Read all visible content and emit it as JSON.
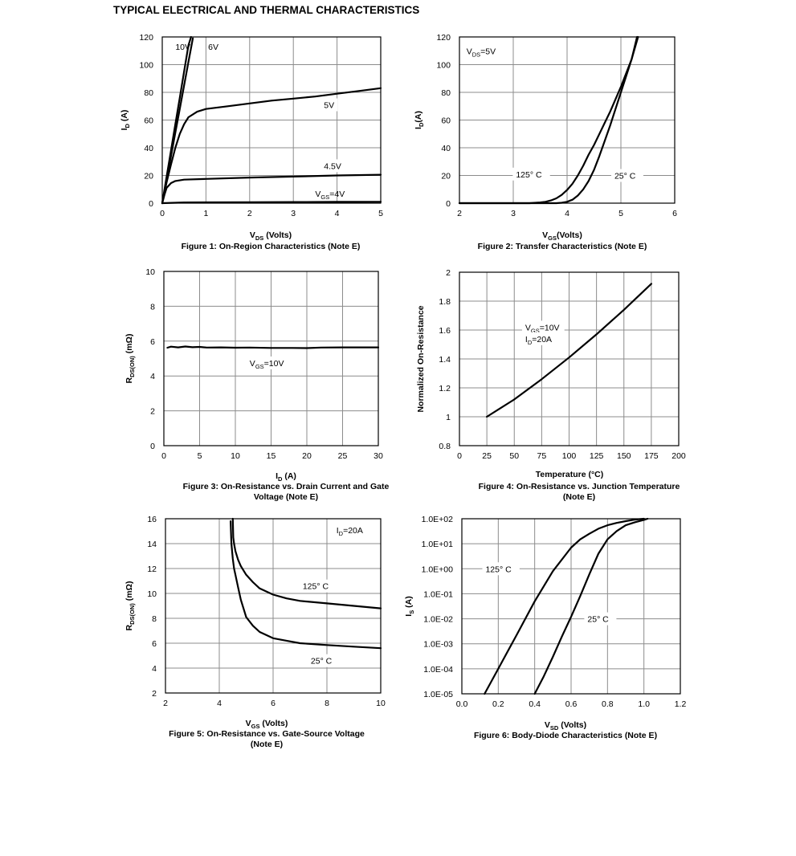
{
  "page_title": "TYPICAL ELECTRICAL AND THERMAL CHARACTERISTICS",
  "chart_data": [
    {
      "type": "line",
      "caption": "Figure 1: On-Region Characteristics (Note E)",
      "xlabel": {
        "main": "V",
        "sub": "DS",
        "rest": " (Volts)"
      },
      "ylabel": {
        "main": "I",
        "sub": "D",
        "rest": " (A)"
      },
      "xlim": [
        0,
        5
      ],
      "ylim": [
        0,
        120
      ],
      "xticks": [
        0,
        1,
        2,
        3,
        4,
        5
      ],
      "yticks": [
        0,
        20,
        40,
        60,
        80,
        100,
        120
      ],
      "xtick_labels": [
        "0",
        "1",
        "2",
        "3",
        "4",
        "5"
      ],
      "ytick_labels": [
        "0",
        "20",
        "40",
        "60",
        "80",
        "100",
        "120"
      ],
      "series": [
        {
          "name": "10V",
          "x": [
            0,
            0.1,
            0.2,
            0.3,
            0.4,
            0.5,
            0.6,
            0.66
          ],
          "y": [
            0,
            19,
            38,
            57,
            76,
            95,
            114,
            120
          ]
        },
        {
          "name": "6V",
          "x": [
            0,
            0.1,
            0.2,
            0.3,
            0.4,
            0.5,
            0.6,
            0.7
          ],
          "y": [
            0,
            17,
            34,
            51,
            68,
            85,
            102,
            119
          ]
        },
        {
          "name": "5V",
          "x": [
            0,
            0.1,
            0.2,
            0.3,
            0.4,
            0.5,
            0.6,
            0.8,
            1,
            1.5,
            2,
            2.5,
            3,
            3.5,
            4,
            4.5,
            5
          ],
          "y": [
            0,
            15,
            28,
            40,
            50,
            57,
            62,
            66,
            68,
            70,
            72,
            74,
            75.5,
            77,
            79,
            81,
            83
          ]
        },
        {
          "name": "4.5V",
          "x": [
            0,
            0.05,
            0.1,
            0.2,
            0.3,
            0.5,
            1,
            2,
            3,
            4,
            5
          ],
          "y": [
            0,
            6,
            11,
            14.5,
            16,
            17,
            17.5,
            18.5,
            19.2,
            20,
            20.5
          ]
        },
        {
          "name": "4V",
          "x": [
            0,
            0.5,
            1,
            2,
            3,
            4,
            5
          ],
          "y": [
            0,
            0.5,
            0.6,
            0.7,
            0.8,
            0.9,
            1
          ]
        }
      ],
      "annotations": [
        {
          "main": "10V",
          "sub": "",
          "rest": "",
          "x": 0.3,
          "y": 113
        },
        {
          "main": "6V",
          "sub": "",
          "rest": "",
          "x": 1.05,
          "y": 113
        },
        {
          "main": "5V",
          "sub": "",
          "rest": "",
          "x": 3.7,
          "y": 71
        },
        {
          "main": "4.5V",
          "sub": "",
          "rest": "",
          "x": 3.7,
          "y": 27
        },
        {
          "main": "V",
          "sub": "GS",
          "rest": "=4V",
          "x": 3.5,
          "y": 7
        }
      ]
    },
    {
      "type": "line",
      "caption": "Figure 2: Transfer Characteristics (Note E)",
      "xlabel": {
        "main": "V",
        "sub": "GS",
        "rest": "(Volts)"
      },
      "ylabel": {
        "main": "I",
        "sub": "D",
        "rest": "(A)"
      },
      "xlim": [
        2,
        6
      ],
      "ylim": [
        0,
        120
      ],
      "xticks": [
        2,
        3,
        4,
        5,
        6
      ],
      "yticks": [
        0,
        20,
        40,
        60,
        80,
        100,
        120
      ],
      "xtick_labels": [
        "2",
        "3",
        "4",
        "5",
        "6"
      ],
      "ytick_labels": [
        "0",
        "20",
        "40",
        "60",
        "80",
        "100",
        "120"
      ],
      "series": [
        {
          "name": "125° C",
          "x": [
            2,
            3,
            3.3,
            3.5,
            3.6,
            3.7,
            3.8,
            3.9,
            4,
            4.1,
            4.2,
            4.3,
            4.4,
            4.5,
            4.6,
            4.7,
            4.8,
            5,
            5.2,
            5.3
          ],
          "y": [
            0,
            0,
            0,
            0.5,
            1,
            2,
            3.5,
            6,
            9.5,
            14,
            20,
            27,
            35,
            42,
            50,
            58,
            66,
            84,
            104,
            120
          ]
        },
        {
          "name": "25° C",
          "x": [
            2,
            3,
            3.5,
            3.8,
            3.9,
            4,
            4.1,
            4.2,
            4.3,
            4.4,
            4.5,
            4.6,
            4.7,
            4.8,
            5,
            5.2,
            5.32
          ],
          "y": [
            0,
            0,
            0,
            0,
            0.3,
            1,
            2.5,
            5.5,
            10,
            16,
            24,
            34,
            45,
            56,
            80,
            104,
            120
          ]
        }
      ],
      "annotations": [
        {
          "main": "V",
          "sub": "DS",
          "rest": "=5V",
          "x": 2.13,
          "y": 110
        },
        {
          "main": "125° C",
          "sub": "",
          "rest": "",
          "x": 3.05,
          "y": 21
        },
        {
          "main": "25° C",
          "sub": "",
          "rest": "",
          "x": 4.88,
          "y": 20
        }
      ]
    },
    {
      "type": "line",
      "caption": "Figure 3: On-Resistance vs. Drain Current and Gate Voltage (Note E)",
      "caption_lines": [
        "Figure 3: On-Resistance vs. Drain Current and Gate",
        "Voltage (Note E)"
      ],
      "xlabel": {
        "main": "I",
        "sub": "D",
        "rest": " (A)"
      },
      "ylabel": {
        "main": "R",
        "sub": "DS(ON)",
        "rest": " (mΩ)"
      },
      "xlim": [
        0,
        30
      ],
      "ylim": [
        0,
        10
      ],
      "xticks": [
        0,
        5,
        10,
        15,
        20,
        25,
        30
      ],
      "yticks": [
        0,
        2,
        4,
        6,
        8,
        10
      ],
      "xtick_labels": [
        "0",
        "5",
        "10",
        "15",
        "20",
        "25",
        "30"
      ],
      "ytick_labels": [
        "0",
        "2",
        "4",
        "6",
        "8",
        "10"
      ],
      "series": [
        {
          "name": "VGS=10V",
          "x": [
            0.5,
            1,
            2,
            3,
            4,
            5,
            6,
            8,
            10,
            12,
            15,
            18,
            20,
            22,
            25,
            28,
            30
          ],
          "y": [
            5.62,
            5.68,
            5.64,
            5.69,
            5.65,
            5.67,
            5.63,
            5.64,
            5.62,
            5.63,
            5.61,
            5.61,
            5.6,
            5.63,
            5.64,
            5.64,
            5.64
          ]
        }
      ],
      "annotations": [
        {
          "main": "V",
          "sub": "GS",
          "rest": "=10V",
          "x": 12,
          "y": 4.75
        }
      ]
    },
    {
      "type": "line",
      "caption": "Figure 4: On-Resistance vs. Junction Temperature (Note E)",
      "caption_lines": [
        "Figure 4: On-Resistance vs. Junction Temperature",
        "(Note E)"
      ],
      "xlabel": {
        "main": "Temperature (°C)",
        "sub": "",
        "rest": ""
      },
      "ylabel": {
        "main": "Normalized On-Resistance",
        "sub": "",
        "rest": ""
      },
      "xlim": [
        0,
        200
      ],
      "ylim": [
        0.8,
        2
      ],
      "xticks": [
        0,
        25,
        50,
        75,
        100,
        125,
        150,
        175,
        200
      ],
      "yticks": [
        0.8,
        1,
        1.2,
        1.4,
        1.6,
        1.8,
        2
      ],
      "xtick_labels": [
        "0",
        "25",
        "50",
        "75",
        "100",
        "125",
        "150",
        "175",
        "200"
      ],
      "ytick_labels": [
        "0.8",
        "1",
        "1.2",
        "1.4",
        "1.6",
        "1.8",
        "2"
      ],
      "series": [
        {
          "name": "VGS=10V ID=20A",
          "x": [
            25,
            50,
            75,
            100,
            125,
            150,
            175
          ],
          "y": [
            1.0,
            1.12,
            1.26,
            1.41,
            1.57,
            1.74,
            1.92
          ]
        }
      ],
      "annotations": [
        {
          "main": "V",
          "sub": "GS",
          "rest": "=10V",
          "x": 60,
          "y": 1.62
        },
        {
          "main": "I",
          "sub": "D",
          "rest": "=20A",
          "x": 60,
          "y": 1.54
        }
      ]
    },
    {
      "type": "line",
      "caption": "Figure 5: On-Resistance vs. Gate-Source Voltage (Note E)",
      "caption_lines": [
        "Figure 5: On-Resistance vs. Gate-Source Voltage",
        "(Note E)"
      ],
      "xlabel": {
        "main": "V",
        "sub": "GS",
        "rest": " (Volts)"
      },
      "ylabel": {
        "main": "R",
        "sub": "DS(ON)",
        "rest": " (mΩ)"
      },
      "xlim": [
        2,
        10
      ],
      "ylim": [
        2,
        16
      ],
      "xticks": [
        2,
        4,
        6,
        8,
        10
      ],
      "yticks": [
        2,
        4,
        6,
        8,
        10,
        12,
        14,
        16
      ],
      "xtick_labels": [
        "2",
        "4",
        "6",
        "8",
        "10"
      ],
      "ytick_labels": [
        "2",
        "4",
        "6",
        "8",
        "10",
        "12",
        "14",
        "16"
      ],
      "series": [
        {
          "name": "125° C",
          "x": [
            4.5,
            4.52,
            4.55,
            4.6,
            4.7,
            4.8,
            5,
            5.25,
            5.5,
            6,
            6.5,
            7,
            8,
            9,
            10
          ],
          "y": [
            16,
            14.5,
            14,
            13.4,
            12.7,
            12.2,
            11.5,
            10.9,
            10.4,
            9.9,
            9.6,
            9.4,
            9.2,
            9.0,
            8.8
          ]
        },
        {
          "name": "25° C",
          "x": [
            4.42,
            4.45,
            4.5,
            4.55,
            4.6,
            4.7,
            4.8,
            5,
            5.25,
            5.5,
            6,
            6.5,
            7,
            8,
            9,
            10
          ],
          "y": [
            15.8,
            14,
            12.8,
            12,
            11.5,
            10.5,
            9.5,
            8.1,
            7.4,
            6.9,
            6.4,
            6.2,
            6.0,
            5.85,
            5.72,
            5.6
          ]
        }
      ],
      "annotations": [
        {
          "main": "I",
          "sub": "D",
          "rest": "=20A",
          "x": 8.35,
          "y": 15.1
        },
        {
          "main": "125° C",
          "sub": "",
          "rest": "",
          "x": 7.1,
          "y": 10.6
        },
        {
          "main": "25° C",
          "sub": "",
          "rest": "",
          "x": 7.4,
          "y": 4.6
        }
      ]
    },
    {
      "type": "line",
      "log_y": true,
      "caption": "Figure 6: Body-Diode Characteristics (Note E)",
      "xlabel": {
        "main": "V",
        "sub": "SD",
        "rest": " (Volts)"
      },
      "ylabel": {
        "main": "I",
        "sub": "S",
        "rest": " (A)"
      },
      "xlim": [
        0,
        1.2
      ],
      "ylim": [
        1e-05,
        100
      ],
      "xticks": [
        0,
        0.2,
        0.4,
        0.6,
        0.8,
        1.0,
        1.2
      ],
      "yticks": [
        1e-05,
        0.0001,
        0.001,
        0.01,
        0.1,
        1,
        10,
        100
      ],
      "xtick_labels": [
        "0.0",
        "0.2",
        "0.4",
        "0.6",
        "0.8",
        "1.0",
        "1.2"
      ],
      "ytick_labels": [
        "1.0E-05",
        "1.0E-04",
        "1.0E-03",
        "1.0E-02",
        "1.0E-01",
        "1.0E+00",
        "1.0E+01",
        "1.0E+02"
      ],
      "series": [
        {
          "name": "125° C",
          "x": [
            0.125,
            0.2,
            0.3,
            0.4,
            0.5,
            0.6,
            0.65,
            0.7,
            0.75,
            0.8,
            0.85,
            0.9,
            0.95,
            1.0
          ],
          "y": [
            1e-05,
            0.0001,
            0.0022,
            0.05,
            0.8,
            7,
            15,
            25,
            40,
            55,
            68,
            80,
            92,
            100
          ]
        },
        {
          "name": "25° C",
          "x": [
            0.4,
            0.45,
            0.5,
            0.55,
            0.6,
            0.65,
            0.7,
            0.75,
            0.8,
            0.85,
            0.9,
            0.95,
            1.0,
            1.02
          ],
          "y": [
            1e-05,
            5e-05,
            0.0003,
            0.002,
            0.012,
            0.08,
            0.6,
            4,
            15,
            32,
            55,
            72,
            90,
            100
          ]
        }
      ],
      "annotations": [
        {
          "main": "125° C",
          "sub": "",
          "rest": "",
          "x": 0.13,
          "y": 1.0
        },
        {
          "main": "25° C",
          "sub": "",
          "rest": "",
          "x": 0.69,
          "y": 0.01
        }
      ]
    }
  ]
}
